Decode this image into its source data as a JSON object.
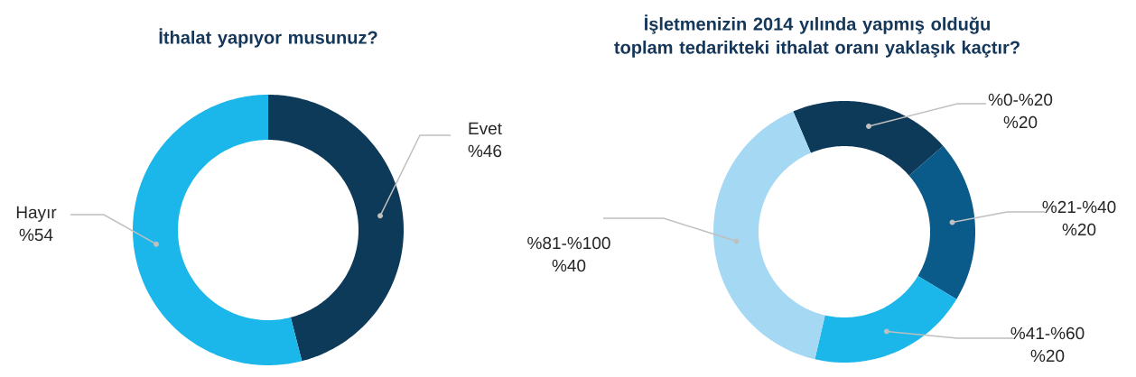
{
  "chart_data": [
    {
      "type": "donut",
      "title": "İthalat yapıyor musunuz?",
      "categories": [
        "Evet",
        "Hayır"
      ],
      "values": [
        46,
        54
      ],
      "colors": [
        "#0e3a5a",
        "#1bb6ea"
      ],
      "value_labels": [
        "%46",
        "%54"
      ]
    },
    {
      "type": "donut",
      "title": "İşletmenizin 2014 yılında yapmış olduğu toplam tedarikteki ithalat  oranı yaklaşık kaçtır?",
      "categories": [
        "%0-%20",
        "%21-%40",
        "%41-%60",
        "%81-%100"
      ],
      "values": [
        20,
        20,
        20,
        40
      ],
      "colors": [
        "#0e3a5a",
        "#0a5a8a",
        "#1bb6ea",
        "#a4d8f3"
      ],
      "value_labels": [
        "%20",
        "%20",
        "%20",
        "%40"
      ]
    }
  ]
}
